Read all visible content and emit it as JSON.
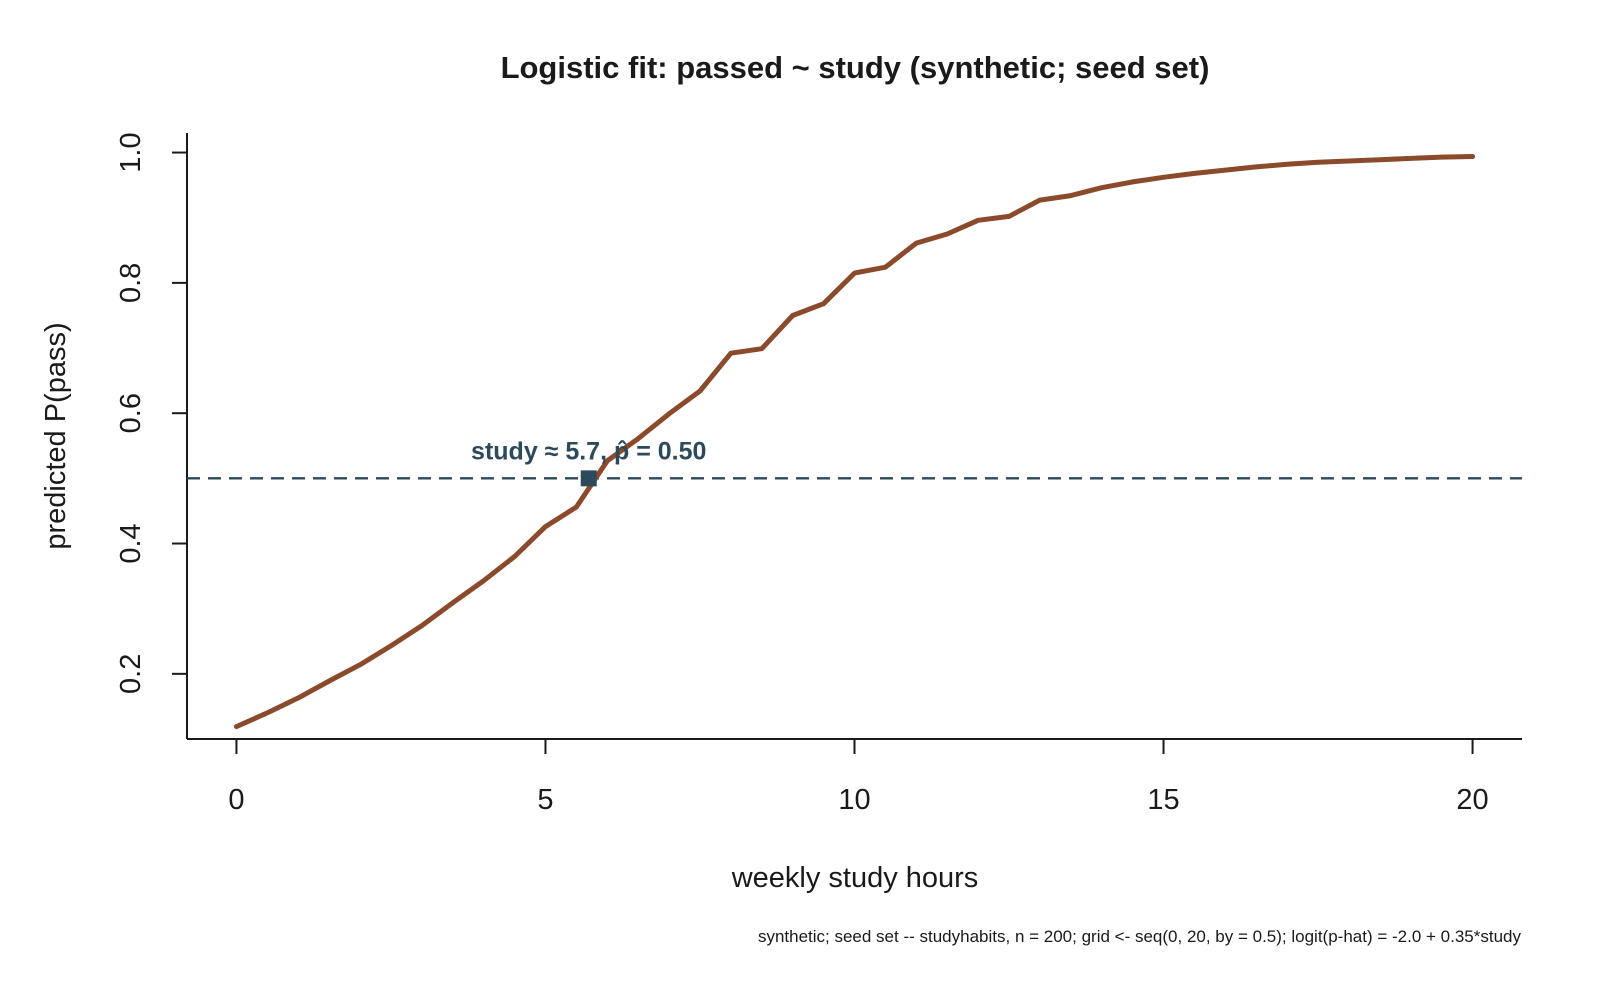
{
  "chart_data": {
    "type": "line",
    "title": "Logistic fit: passed ~ study (synthetic; seed set)",
    "xlabel": "weekly study hours",
    "ylabel": "predicted P(pass)",
    "xlim": [
      -0.8,
      20.8
    ],
    "ylim": [
      0.1,
      1.03
    ],
    "xticks": [
      0,
      5,
      10,
      15,
      20
    ],
    "xtick_labels": [
      "0",
      "5",
      "10",
      "15",
      "20"
    ],
    "yticks": [
      0.2,
      0.4,
      0.6,
      0.8,
      1.0
    ],
    "ytick_labels": [
      "0.2",
      "0.4",
      "0.6",
      "0.8",
      "1.0"
    ],
    "grid": false,
    "series": [
      {
        "x": [
          0,
          0.5,
          1,
          1.5,
          2,
          2.5,
          3,
          3.5,
          4,
          4.5,
          5,
          5.5,
          6,
          6.5,
          7,
          7.5,
          8,
          8.5,
          9,
          9.5,
          10,
          10.5,
          11,
          11.5,
          12,
          12.5,
          13,
          13.5,
          14,
          14.5,
          15,
          15.5,
          16,
          16.5,
          17,
          17.5,
          18,
          18.5,
          19,
          19.5,
          20
        ],
        "y": [
          0.119,
          0.14,
          0.163,
          0.189,
          0.214,
          0.243,
          0.274,
          0.309,
          0.343,
          0.38,
          0.426,
          0.456,
          0.527,
          0.561,
          0.599,
          0.634,
          0.692,
          0.699,
          0.75,
          0.768,
          0.815,
          0.824,
          0.861,
          0.875,
          0.896,
          0.902,
          0.927,
          0.934,
          0.946,
          0.955,
          0.962,
          0.968,
          0.973,
          0.978,
          0.982,
          0.985,
          0.987,
          0.989,
          0.991,
          0.993,
          0.994
        ]
      }
    ],
    "reference_line": {
      "y": 0.5,
      "style": "dashed"
    },
    "marker": {
      "x": 5.7,
      "y": 0.5,
      "shape": "square"
    },
    "annotation": "study ≈ 5.7, p̂ = 0.50",
    "caption": "synthetic; seed set -- studyhabits, n = 200; grid <- seq(0, 20, by = 0.5); logit(p-hat) = -2.0 + 0.35*study",
    "colors": {
      "curve": "#8b4a2b",
      "reference": "#2d4a5a",
      "axis": "#1a1a1a"
    }
  }
}
